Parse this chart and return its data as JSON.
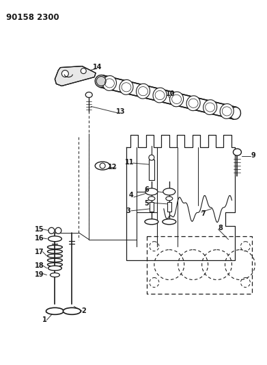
{
  "title": "90158 2300",
  "bg_color": "#ffffff",
  "line_color": "#1a1a1a",
  "title_fontsize": 8.5,
  "label_fontsize": 7,
  "figsize": [
    3.91,
    5.33
  ],
  "dpi": 100
}
